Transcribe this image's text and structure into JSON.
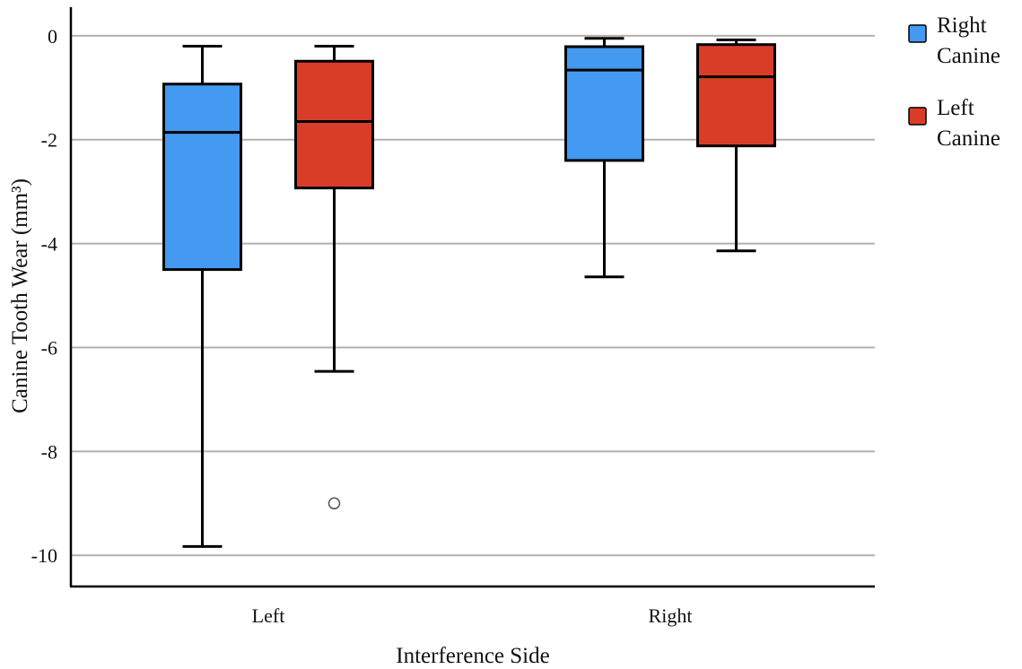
{
  "chart_data": {
    "type": "box",
    "title": "",
    "xlabel": "Interference Side",
    "ylabel": "Canine Tooth Wear (mm³)",
    "categories": [
      "Left",
      "Right"
    ],
    "ylim": [
      -10.6,
      0.55
    ],
    "yticks": [
      0,
      -2,
      -4,
      -6,
      -8,
      -10
    ],
    "grid": true,
    "legend_position": "top-right",
    "series": [
      {
        "name": "Right Canine",
        "color": "#4499f0",
        "boxes": [
          {
            "min": -9.83,
            "q1": -4.5,
            "median": -1.86,
            "q3": -0.93,
            "max": -0.2,
            "outliers": []
          },
          {
            "min": -4.64,
            "q1": -2.4,
            "median": -0.66,
            "q3": -0.21,
            "max": -0.05,
            "outliers": []
          }
        ]
      },
      {
        "name": "Left Canine",
        "color": "#d93d28",
        "boxes": [
          {
            "min": -6.46,
            "q1": -2.93,
            "median": -1.65,
            "q3": -0.49,
            "max": -0.2,
            "outliers": [
              -9.0
            ]
          },
          {
            "min": -4.14,
            "q1": -2.12,
            "median": -0.79,
            "q3": -0.17,
            "max": -0.08,
            "outliers": []
          }
        ]
      }
    ]
  }
}
